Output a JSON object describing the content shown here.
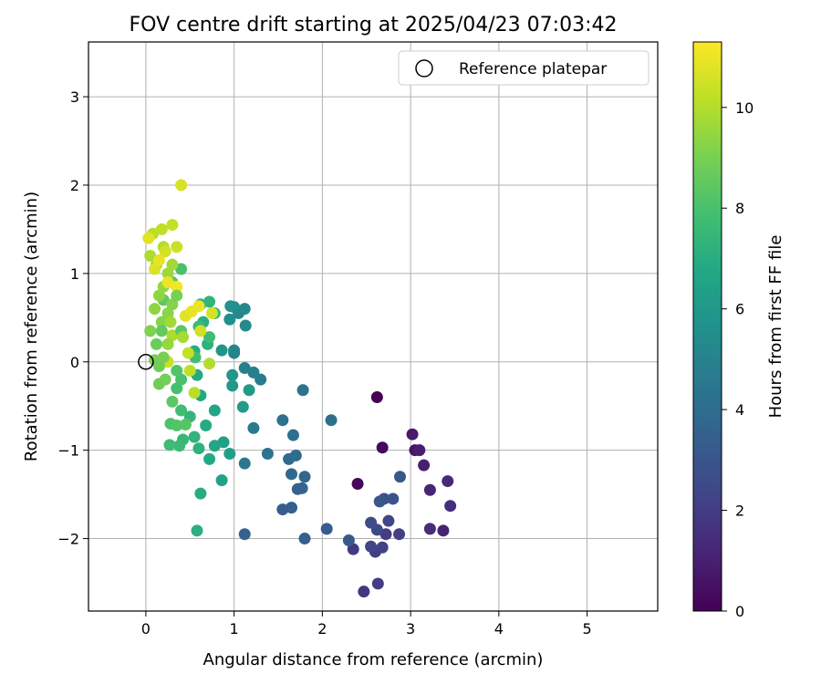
{
  "chart_data": {
    "type": "scatter",
    "title": "FOV centre drift starting at 2025/04/23 07:03:42",
    "xlabel": "Angular distance from reference (arcmin)",
    "ylabel": "Rotation from reference (arcmin)",
    "xlim": [
      -0.65,
      5.8
    ],
    "ylim": [
      -2.82,
      3.62
    ],
    "xticks": [
      0,
      1,
      2,
      3,
      4,
      5
    ],
    "yticks": [
      -2,
      -1,
      0,
      1,
      2,
      3
    ],
    "grid": true,
    "legend": {
      "position": "top-right",
      "entries": [
        "Reference platepar"
      ]
    },
    "reference_point": {
      "x": 0,
      "y": 0
    },
    "colorbar": {
      "label": "Hours from first FF file",
      "range": [
        0,
        11.3
      ],
      "ticks": [
        0,
        2,
        4,
        6,
        8,
        10
      ],
      "colormap": "viridis"
    },
    "series": [
      {
        "name": "",
        "points": [
          [
            2.62,
            -0.4,
            0.0
          ],
          [
            2.68,
            -0.97,
            0.3
          ],
          [
            2.4,
            -1.38,
            0.2
          ],
          [
            3.05,
            -1.0,
            0.6
          ],
          [
            3.02,
            -0.82,
            0.8
          ],
          [
            3.1,
            -1.0,
            0.9
          ],
          [
            3.15,
            -1.17,
            1.0
          ],
          [
            3.22,
            -1.45,
            1.2
          ],
          [
            3.42,
            -1.35,
            1.3
          ],
          [
            3.45,
            -1.63,
            1.5
          ],
          [
            3.22,
            -1.89,
            1.4
          ],
          [
            3.37,
            -1.91,
            1.1
          ],
          [
            2.47,
            -2.6,
            1.8
          ],
          [
            2.63,
            -2.51,
            2.0
          ],
          [
            2.35,
            -2.12,
            1.9
          ],
          [
            2.6,
            -2.15,
            2.1
          ],
          [
            2.68,
            -2.1,
            2.2
          ],
          [
            2.55,
            -2.09,
            2.3
          ],
          [
            2.72,
            -1.95,
            2.0
          ],
          [
            2.87,
            -1.95,
            2.1
          ],
          [
            2.75,
            -1.8,
            2.4
          ],
          [
            2.62,
            -1.9,
            2.5
          ],
          [
            2.55,
            -1.82,
            2.6
          ],
          [
            2.7,
            -1.55,
            2.8
          ],
          [
            2.8,
            -1.55,
            2.9
          ],
          [
            2.65,
            -1.58,
            3.0
          ],
          [
            2.88,
            -1.3,
            3.1
          ],
          [
            2.3,
            -2.02,
            3.2
          ],
          [
            2.05,
            -1.89,
            3.3
          ],
          [
            1.8,
            -2.0,
            3.4
          ],
          [
            1.12,
            -1.95,
            3.5
          ],
          [
            1.55,
            -1.67,
            3.3
          ],
          [
            1.65,
            -1.65,
            3.4
          ],
          [
            1.72,
            -1.44,
            3.5
          ],
          [
            1.77,
            -1.43,
            3.6
          ],
          [
            1.8,
            -1.3,
            3.7
          ],
          [
            1.65,
            -1.27,
            3.8
          ],
          [
            1.62,
            -1.1,
            3.9
          ],
          [
            1.7,
            -1.06,
            4.0
          ],
          [
            1.67,
            -0.83,
            4.1
          ],
          [
            1.55,
            -0.66,
            4.2
          ],
          [
            2.1,
            -0.66,
            4.1
          ],
          [
            1.78,
            -0.32,
            4.3
          ],
          [
            1.38,
            -1.04,
            4.4
          ],
          [
            1.12,
            -1.15,
            4.5
          ],
          [
            1.22,
            -0.75,
            4.6
          ],
          [
            1.3,
            -0.2,
            4.7
          ],
          [
            1.22,
            -0.12,
            4.8
          ],
          [
            1.12,
            -0.07,
            4.9
          ],
          [
            1.0,
            0.1,
            5.0
          ],
          [
            1.0,
            0.13,
            5.1
          ],
          [
            1.05,
            0.55,
            5.2
          ],
          [
            1.12,
            0.6,
            5.3
          ],
          [
            1.13,
            0.41,
            5.4
          ],
          [
            1.0,
            0.62,
            5.5
          ],
          [
            0.95,
            0.48,
            5.6
          ],
          [
            0.96,
            0.63,
            5.7
          ],
          [
            0.86,
            0.13,
            5.8
          ],
          [
            0.98,
            -0.15,
            5.9
          ],
          [
            0.98,
            -0.27,
            6.0
          ],
          [
            1.17,
            -0.32,
            6.1
          ],
          [
            1.1,
            -0.51,
            6.2
          ],
          [
            0.95,
            -1.04,
            6.3
          ],
          [
            0.88,
            -0.91,
            6.4
          ],
          [
            0.86,
            -1.34,
            6.5
          ],
          [
            0.78,
            -0.55,
            6.6
          ],
          [
            0.78,
            -0.95,
            6.7
          ],
          [
            0.72,
            -1.1,
            6.8
          ],
          [
            0.68,
            -0.72,
            6.9
          ],
          [
            0.62,
            -1.49,
            7.0
          ],
          [
            0.58,
            -1.91,
            7.1
          ],
          [
            0.6,
            -0.98,
            7.2
          ],
          [
            0.55,
            -0.85,
            7.3
          ],
          [
            0.5,
            -0.62,
            7.4
          ],
          [
            0.42,
            -0.88,
            7.5
          ],
          [
            0.38,
            -0.95,
            7.6
          ],
          [
            0.27,
            -0.94,
            7.7
          ],
          [
            0.4,
            -0.55,
            7.8
          ],
          [
            0.35,
            -0.3,
            7.9
          ],
          [
            0.4,
            -0.2,
            8.0
          ],
          [
            0.28,
            -0.7,
            8.1
          ],
          [
            0.35,
            -0.72,
            8.2
          ],
          [
            0.45,
            -0.71,
            8.3
          ],
          [
            0.3,
            -0.45,
            8.4
          ],
          [
            0.58,
            -0.15,
            6.9
          ],
          [
            0.62,
            -0.38,
            6.8
          ],
          [
            0.55,
            0.12,
            7.0
          ],
          [
            0.7,
            0.2,
            7.2
          ],
          [
            0.65,
            0.45,
            7.1
          ],
          [
            0.72,
            0.68,
            7.3
          ],
          [
            0.62,
            0.65,
            7.4
          ],
          [
            0.78,
            0.55,
            7.5
          ],
          [
            0.6,
            0.4,
            7.6
          ],
          [
            0.72,
            0.28,
            7.7
          ],
          [
            0.56,
            0.05,
            7.8
          ],
          [
            0.4,
            1.05,
            8.0
          ],
          [
            0.3,
            0.9,
            8.3
          ],
          [
            0.2,
            0.7,
            8.5
          ],
          [
            0.12,
            0.2,
            8.7
          ],
          [
            0.15,
            -0.25,
            8.8
          ],
          [
            0.22,
            -0.2,
            8.9
          ],
          [
            0.1,
            0.02,
            9.0
          ],
          [
            0.05,
            0.35,
            9.1
          ],
          [
            0.18,
            0.45,
            9.2
          ],
          [
            0.25,
            0.55,
            9.3
          ],
          [
            0.15,
            0.75,
            9.4
          ],
          [
            0.2,
            0.85,
            9.5
          ],
          [
            0.25,
            1.0,
            9.6
          ],
          [
            0.3,
            1.1,
            9.7
          ],
          [
            0.12,
            1.1,
            9.8
          ],
          [
            0.05,
            1.2,
            9.9
          ],
          [
            0.2,
            1.3,
            10.0
          ],
          [
            0.08,
            1.45,
            10.1
          ],
          [
            0.18,
            1.5,
            10.2
          ],
          [
            0.3,
            1.55,
            10.3
          ],
          [
            0.35,
            1.3,
            10.4
          ],
          [
            0.4,
            2.0,
            10.6
          ],
          [
            0.22,
            1.25,
            10.5
          ],
          [
            0.1,
            1.05,
            10.7
          ],
          [
            0.03,
            1.4,
            10.8
          ],
          [
            0.15,
            1.15,
            10.9
          ],
          [
            0.25,
            0.9,
            11.0
          ],
          [
            0.35,
            0.85,
            11.1
          ],
          [
            0.45,
            0.52,
            10.8
          ],
          [
            0.52,
            0.57,
            10.9
          ],
          [
            0.6,
            0.63,
            11.0
          ],
          [
            0.62,
            0.35,
            10.5
          ],
          [
            0.75,
            0.55,
            10.6
          ],
          [
            0.48,
            0.1,
            10.3
          ],
          [
            0.5,
            -0.1,
            10.2
          ],
          [
            0.55,
            -0.35,
            10.1
          ],
          [
            0.25,
            0.0,
            10.4
          ],
          [
            0.72,
            -0.02,
            10.0
          ],
          [
            0.3,
            0.3,
            9.9
          ],
          [
            0.25,
            0.2,
            9.5
          ],
          [
            0.2,
            0.05,
            9.0
          ],
          [
            0.18,
            0.35,
            8.6
          ],
          [
            0.4,
            0.35,
            8.4
          ],
          [
            0.35,
            -0.1,
            8.2
          ],
          [
            0.3,
            0.65,
            9.2
          ],
          [
            0.28,
            0.45,
            9.7
          ],
          [
            0.35,
            0.75,
            9.0
          ],
          [
            0.1,
            0.6,
            9.4
          ],
          [
            0.42,
            0.28,
            9.8
          ],
          [
            0.15,
            -0.05,
            8.8
          ]
        ]
      }
    ]
  }
}
